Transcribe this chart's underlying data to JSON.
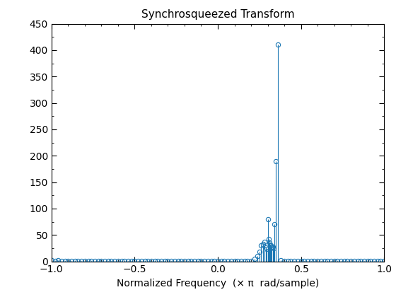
{
  "title": "Synchrosqueezed Transform",
  "xlabel": "Normalized Frequency  (× π  rad/sample)",
  "xlim": [
    -1,
    1
  ],
  "ylim": [
    0,
    450
  ],
  "yticks": [
    0,
    50,
    100,
    150,
    200,
    250,
    300,
    350,
    400,
    450
  ],
  "xticks": [
    -1,
    -0.5,
    0,
    0.5,
    1
  ],
  "stem_color": "#1d78b4",
  "freqs": [
    -1.0,
    -0.98,
    -0.96,
    -0.94,
    -0.92,
    -0.9,
    -0.88,
    -0.86,
    -0.84,
    -0.82,
    -0.8,
    -0.78,
    -0.76,
    -0.74,
    -0.72,
    -0.7,
    -0.68,
    -0.66,
    -0.64,
    -0.62,
    -0.6,
    -0.58,
    -0.56,
    -0.54,
    -0.52,
    -0.5,
    -0.48,
    -0.46,
    -0.44,
    -0.42,
    -0.4,
    -0.38,
    -0.36,
    -0.34,
    -0.32,
    -0.3,
    -0.28,
    -0.26,
    -0.24,
    -0.22,
    -0.2,
    -0.18,
    -0.16,
    -0.14,
    -0.12,
    -0.1,
    -0.08,
    -0.06,
    -0.04,
    -0.02,
    0.0,
    0.02,
    0.04,
    0.06,
    0.08,
    0.1,
    0.12,
    0.14,
    0.16,
    0.18,
    0.2,
    0.22,
    0.24,
    0.25,
    0.26,
    0.27,
    0.28,
    0.29,
    0.295,
    0.3,
    0.305,
    0.31,
    0.315,
    0.32,
    0.325,
    0.33,
    0.335,
    0.34,
    0.35,
    0.36,
    0.38,
    0.4,
    0.42,
    0.44,
    0.46,
    0.48,
    0.5,
    0.52,
    0.54,
    0.56,
    0.58,
    0.6,
    0.62,
    0.64,
    0.66,
    0.68,
    0.7,
    0.72,
    0.74,
    0.76,
    0.78,
    0.8,
    0.82,
    0.84,
    0.86,
    0.88,
    0.9,
    0.92,
    0.94,
    0.96,
    0.98,
    1.0
  ],
  "values": [
    1.5,
    1.2,
    1.5,
    1.2,
    1.0,
    1.3,
    1.1,
    1.0,
    1.2,
    1.0,
    1.1,
    1.0,
    1.2,
    1.1,
    1.0,
    1.0,
    1.2,
    1.1,
    1.0,
    1.1,
    1.0,
    1.0,
    1.1,
    1.0,
    1.2,
    1.1,
    1.0,
    1.0,
    1.1,
    1.0,
    1.2,
    1.0,
    1.1,
    1.0,
    1.0,
    1.2,
    1.1,
    1.0,
    1.1,
    1.0,
    1.2,
    1.0,
    1.1,
    1.0,
    1.0,
    1.2,
    1.1,
    1.0,
    1.1,
    1.0,
    1.0,
    1.0,
    1.1,
    1.0,
    1.2,
    1.1,
    1.0,
    1.0,
    1.1,
    1.0,
    1.2,
    5.0,
    10.0,
    18.0,
    30.0,
    33.0,
    37.0,
    26.0,
    23.0,
    80.0,
    42.0,
    36.0,
    32.0,
    30.0,
    28.0,
    27.0,
    25.0,
    70.0,
    190.0,
    410.0,
    1.5,
    1.2,
    1.0,
    1.0,
    1.1,
    1.0,
    1.0,
    1.1,
    1.0,
    1.0,
    1.2,
    1.0,
    1.0,
    1.1,
    1.0,
    1.0,
    1.0,
    1.1,
    1.0,
    1.0,
    1.2,
    1.1,
    1.0,
    1.1,
    1.0,
    1.0,
    1.0,
    1.1,
    1.0,
    1.0,
    1.2,
    1.0
  ],
  "title_fontsize": 11,
  "xlabel_fontsize": 10,
  "tick_fontsize": 10
}
